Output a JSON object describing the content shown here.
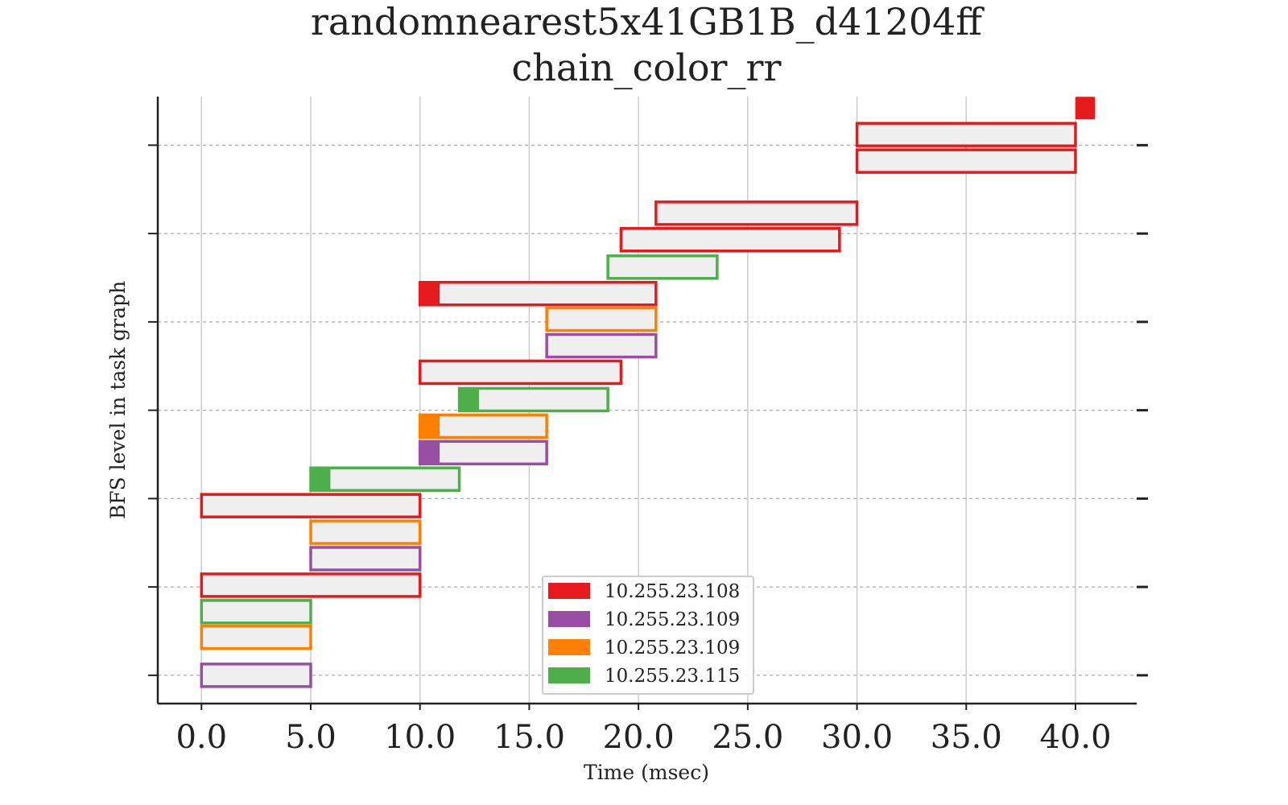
{
  "chart_data": {
    "type": "bar",
    "subtype": "gantt",
    "title": [
      "randomnearest5x41GB1B_d41204ff",
      "chain_color_rr"
    ],
    "xlabel": "Time (msec)",
    "ylabel": "BFS level in task graph",
    "xlim": [
      -2.0,
      42.8
    ],
    "ylim": [
      -0.32,
      6.55
    ],
    "x_ticks": [
      0,
      5,
      10,
      15,
      20,
      25,
      30,
      35,
      40
    ],
    "x_tick_labels": [
      "0.0",
      "5.0",
      "10.0",
      "15.0",
      "20.0",
      "25.0",
      "30.0",
      "35.0",
      "40.0"
    ],
    "y_ticks": [
      0,
      1,
      2,
      3,
      4,
      5,
      6
    ],
    "y_tick_labels": [
      "",
      "",
      "",
      "",
      "",
      "",
      ""
    ],
    "x_grid": true,
    "y_grid": "dashed",
    "legend_position": "lower center",
    "series": [
      {
        "name": "10.255.23.108",
        "color": "#e41a1c"
      },
      {
        "name": "10.255.23.109",
        "color": "#984ea3"
      },
      {
        "name": "10.255.23.109",
        "color": "#ff7f00"
      },
      {
        "name": "10.255.23.115",
        "color": "#4daf4a"
      }
    ],
    "tasks": [
      {
        "series": 1,
        "level": 0.0,
        "start": 0.0,
        "end": 5.0,
        "head": 0
      },
      {
        "series": 2,
        "level": 0.43,
        "start": 0.0,
        "end": 5.0,
        "head": 0
      },
      {
        "series": 3,
        "level": 0.72,
        "start": 0.0,
        "end": 5.0,
        "head": 0
      },
      {
        "series": 0,
        "level": 1.02,
        "start": 0.0,
        "end": 10.0,
        "head": 0
      },
      {
        "series": 1,
        "level": 1.32,
        "start": 5.0,
        "end": 10.0,
        "head": 0
      },
      {
        "series": 2,
        "level": 1.62,
        "start": 5.0,
        "end": 10.0,
        "head": 0
      },
      {
        "series": 0,
        "level": 1.92,
        "start": 0.0,
        "end": 10.0,
        "head": 0
      },
      {
        "series": 3,
        "level": 2.22,
        "start": 5.0,
        "end": 11.8,
        "head": 0.9
      },
      {
        "series": 1,
        "level": 2.52,
        "start": 10.0,
        "end": 15.8,
        "head": 0.9
      },
      {
        "series": 2,
        "level": 2.82,
        "start": 10.0,
        "end": 15.8,
        "head": 0.9
      },
      {
        "series": 3,
        "level": 3.12,
        "start": 11.8,
        "end": 18.6,
        "head": 0.9
      },
      {
        "series": 0,
        "level": 3.43,
        "start": 10.0,
        "end": 19.2,
        "head": 0
      },
      {
        "series": 1,
        "level": 3.73,
        "start": 15.8,
        "end": 20.8,
        "head": 0
      },
      {
        "series": 2,
        "level": 4.03,
        "start": 15.8,
        "end": 20.8,
        "head": 0
      },
      {
        "series": 0,
        "level": 4.32,
        "start": 10.0,
        "end": 20.8,
        "head": 0.9
      },
      {
        "series": 3,
        "level": 4.62,
        "start": 18.6,
        "end": 23.6,
        "head": 0
      },
      {
        "series": 0,
        "level": 4.93,
        "start": 19.2,
        "end": 29.2,
        "head": 0
      },
      {
        "series": 0,
        "level": 5.23,
        "start": 20.8,
        "end": 30.0,
        "head": 0
      },
      {
        "series": 0,
        "level": 5.82,
        "start": 30.0,
        "end": 40.0,
        "head": 0
      },
      {
        "series": 0,
        "level": 6.12,
        "start": 30.0,
        "end": 40.0,
        "head": 0
      },
      {
        "series": 0,
        "level": 6.42,
        "start": 40.0,
        "end": 40.9,
        "head": 0.9
      }
    ]
  }
}
